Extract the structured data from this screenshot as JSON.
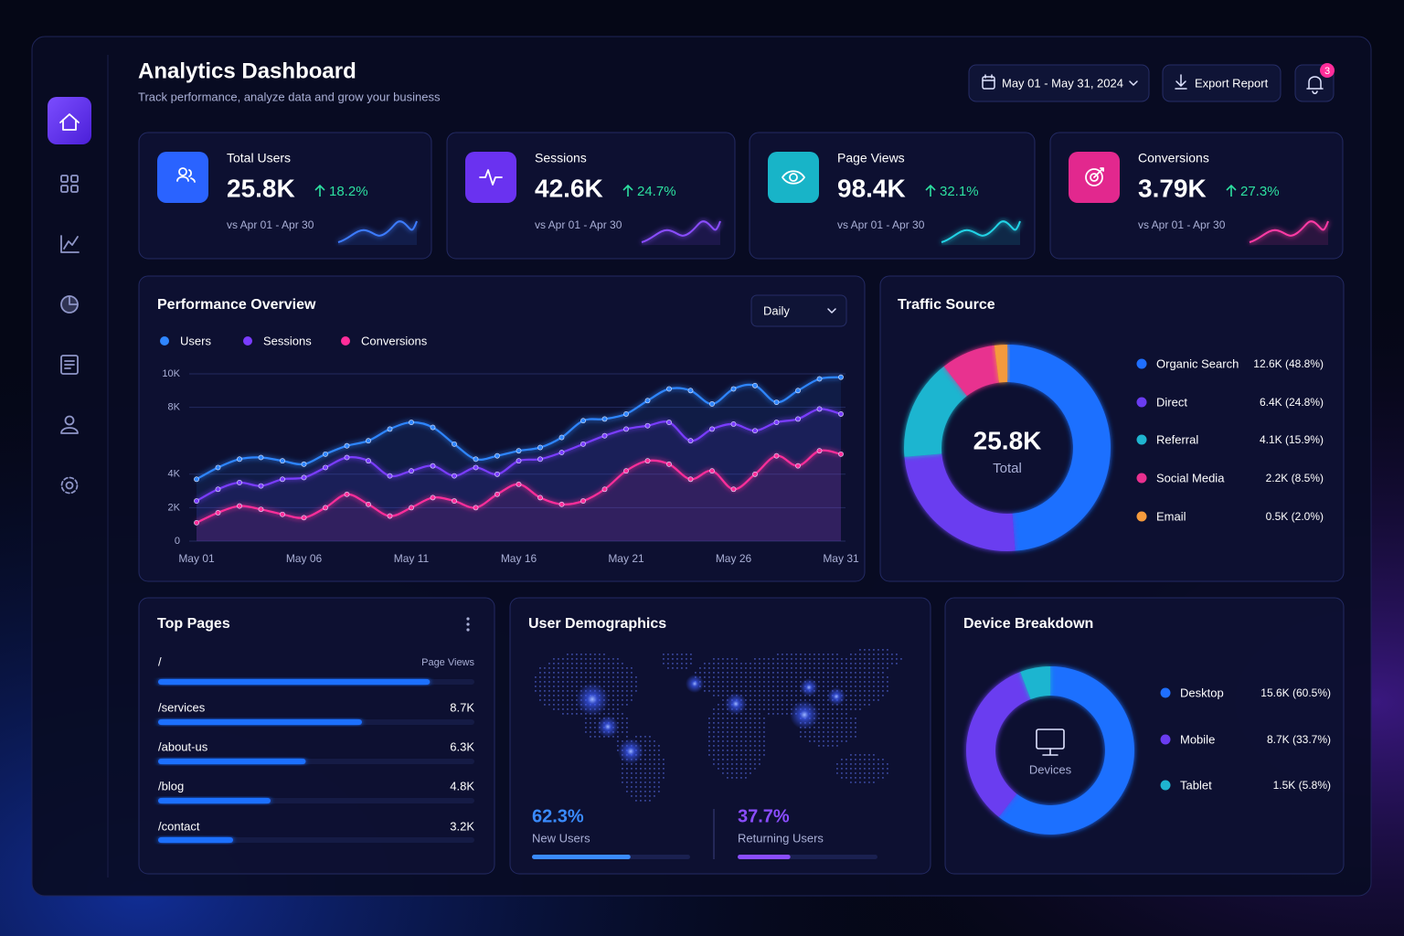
{
  "header": {
    "title": "Analytics Dashboard",
    "subtitle": "Track performance, analyze data and grow your business",
    "date_range": "May 01 - May 31, 2024",
    "export": "Export Report",
    "notifications": 3
  },
  "kpis": [
    {
      "label": "Total Users",
      "value": "25.8K",
      "change": "18.2%",
      "compare": "vs Apr 01 - Apr 30"
    },
    {
      "label": "Sessions",
      "value": "42.6K",
      "change": "24.7%",
      "compare": "vs Apr 01 - Apr 30"
    },
    {
      "label": "Page Views",
      "value": "98.4K",
      "change": "32.1%",
      "compare": "vs Apr 01 - Apr 30"
    },
    {
      "label": "Conversions",
      "value": "3.79K",
      "change": "27.3%",
      "compare": "vs Apr 01 - Apr 30"
    }
  ],
  "chart_data": [
    {
      "type": "line",
      "title": "Performance Overview",
      "period": "Daily",
      "categories": [
        "May 01",
        null,
        null,
        null,
        null,
        "May 06",
        null,
        null,
        null,
        null,
        "May 11",
        null,
        null,
        null,
        null,
        "May 16",
        null,
        null,
        null,
        null,
        "May 21",
        null,
        null,
        null,
        null,
        "May 26",
        null,
        null,
        null,
        null,
        "May 31"
      ],
      "series": [
        {
          "name": "Users",
          "color": "#2f86ff",
          "values": [
            3700,
            4400,
            4900,
            5000,
            4800,
            4600,
            5200,
            5700,
            6000,
            6700,
            7100,
            6800,
            5800,
            4900,
            5100,
            5400,
            5600,
            6200,
            7200,
            7300,
            7600,
            8400,
            9100,
            9000,
            8200,
            9100,
            9300,
            8300,
            9000,
            9700,
            9800
          ]
        },
        {
          "name": "Sessions",
          "color": "#7a3cff",
          "values": [
            2400,
            3100,
            3500,
            3300,
            3700,
            3800,
            4400,
            5000,
            4800,
            3900,
            4200,
            4500,
            3900,
            4400,
            4000,
            4800,
            4900,
            5300,
            5800,
            6300,
            6700,
            6900,
            7100,
            6000,
            6700,
            7000,
            6600,
            7100,
            7300,
            7900,
            7600
          ]
        },
        {
          "name": "Conversions",
          "color": "#ff2d9a",
          "values": [
            1100,
            1700,
            2100,
            1900,
            1600,
            1400,
            2000,
            2800,
            2200,
            1500,
            2000,
            2600,
            2400,
            2000,
            2800,
            3400,
            2600,
            2200,
            2400,
            3100,
            4200,
            4800,
            4600,
            3700,
            4200,
            3100,
            4000,
            5100,
            4500,
            5400,
            5200
          ]
        }
      ],
      "ylim": [
        0,
        10000
      ],
      "yticks": [
        0,
        {
          "value": 2000,
          "label": "2K"
        },
        {
          "value": 4000,
          "label": "4K"
        },
        {
          "value": 8000,
          "label": "8K"
        },
        {
          "value": 10000,
          "label": "10K"
        }
      ],
      "grid": true
    },
    {
      "type": "pie",
      "title": "Traffic Source",
      "center_value": "25.8K",
      "center_label": "Total",
      "categories": [
        "Organic Search",
        "Direct",
        "Referral",
        "Social Media",
        "Email"
      ],
      "values": [
        48.8,
        24.8,
        15.9,
        8.5,
        2.0
      ],
      "value_labels": [
        "12.6K (48.8%)",
        "6.4K (24.8%)",
        "4.1K (15.9%)",
        "2.2K (8.5%)",
        "0.5K (2.0%)"
      ],
      "colors": [
        "#1f6fff",
        "#6a3cf0",
        "#1fb5d0",
        "#e8308f",
        "#f59a3c"
      ]
    },
    {
      "type": "bar",
      "orientation": "horizontal",
      "title": "Top Pages",
      "value_axis_label": "Page Views",
      "categories": [
        "/",
        "/services",
        "/about-us",
        "/blog",
        "/contact"
      ],
      "values": [
        11600,
        8700,
        6300,
        4800,
        3200
      ],
      "value_labels": [
        null,
        "8.7K",
        "6.3K",
        "4.8K",
        "3.2K"
      ],
      "xlim": [
        0,
        13500
      ],
      "color": "#1f6fff"
    },
    {
      "type": "pie",
      "title": "Device Breakdown",
      "center_label": "Devices",
      "categories": [
        "Desktop",
        "Mobile",
        "Tablet"
      ],
      "values": [
        60.5,
        33.7,
        5.8
      ],
      "value_labels": [
        "15.6K (60.5%)",
        "8.7K (33.7%)",
        "1.5K (5.8%)"
      ],
      "colors": [
        "#1f6fff",
        "#6a3cf0",
        "#1fb5d0"
      ]
    }
  ],
  "demographics": {
    "title": "User Demographics",
    "segments": [
      {
        "label": "New Users",
        "value": 62.3,
        "value_label": "62.3%",
        "color": "#3a8bff"
      },
      {
        "label": "Returning Users",
        "value": 37.7,
        "value_label": "37.7%",
        "color": "#8a4dff"
      }
    ]
  }
}
